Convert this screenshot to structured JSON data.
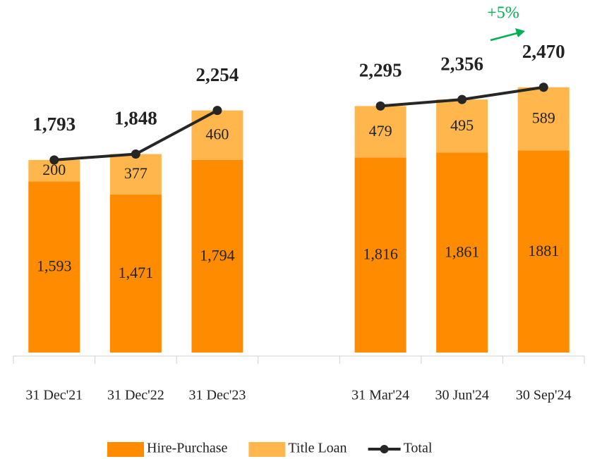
{
  "chart_data": {
    "type": "bar",
    "stacked": true,
    "categories": [
      "31 Dec'21",
      "31 Dec'22",
      "31 Dec'23",
      null,
      "31 Mar'24",
      "30 Jun'24",
      "30 Sep'24"
    ],
    "series": [
      {
        "name": "Hire-Purchase",
        "type": "bar",
        "color": "#ff8c00",
        "values": [
          1593,
          1471,
          1794,
          null,
          1816,
          1861,
          1881
        ],
        "value_labels": [
          "1,593",
          "1,471",
          "1,794",
          null,
          "1,816",
          "1,861",
          "1881"
        ]
      },
      {
        "name": "Title Loan",
        "type": "bar",
        "color": "#ffb74d",
        "values": [
          200,
          377,
          460,
          null,
          479,
          495,
          589
        ]
      },
      {
        "name": "Total",
        "type": "line",
        "color": "#262626",
        "values": [
          1793,
          1848,
          2254,
          null,
          2295,
          2356,
          2470
        ],
        "value_labels": [
          "1,793",
          "1,848",
          "2,254",
          null,
          "2,295",
          "2,356",
          "2,470"
        ]
      }
    ],
    "annotation": "+5%",
    "annotation_color": "#00b050",
    "ylim": [
      0,
      3000
    ],
    "legend": "bottom"
  }
}
